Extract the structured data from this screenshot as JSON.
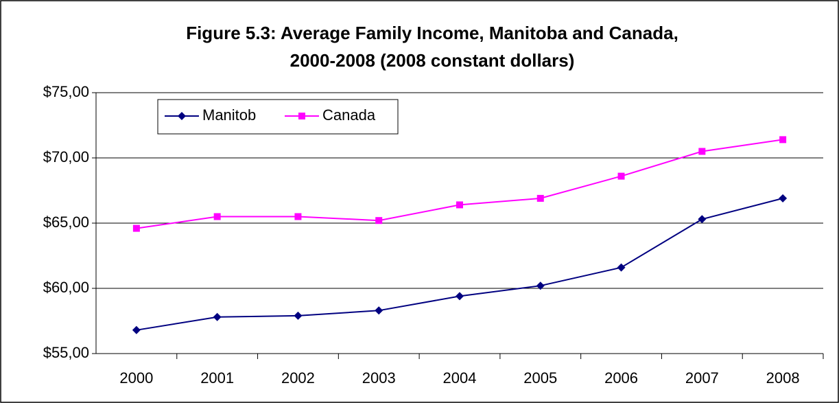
{
  "chart_data": {
    "type": "line",
    "title": [
      "Figure 5.3: Average Family Income, Manitoba and Canada,",
      "2000-2008 (2008 constant dollars)"
    ],
    "categories": [
      "2000",
      "2001",
      "2002",
      "2003",
      "2004",
      "2005",
      "2006",
      "2007",
      "2008"
    ],
    "series": [
      {
        "name": "Manitob",
        "color": "#000080",
        "marker": "diamond",
        "values": [
          56.8,
          57.8,
          57.9,
          58.3,
          59.4,
          60.2,
          61.6,
          65.3,
          66.9
        ]
      },
      {
        "name": "Canada",
        "color": "#ff00ff",
        "marker": "square",
        "values": [
          64.6,
          65.5,
          65.5,
          65.2,
          66.4,
          66.9,
          68.6,
          70.5,
          71.4
        ]
      }
    ],
    "ylim": [
      55,
      75
    ],
    "yticks": [
      {
        "value": 55,
        "label": "$55,00"
      },
      {
        "value": 60,
        "label": "$60,00"
      },
      {
        "value": 65,
        "label": "$65,00"
      },
      {
        "value": 70,
        "label": "$70,00"
      },
      {
        "value": 75,
        "label": "$75,00"
      }
    ],
    "grid": true,
    "legend": "top-left"
  }
}
